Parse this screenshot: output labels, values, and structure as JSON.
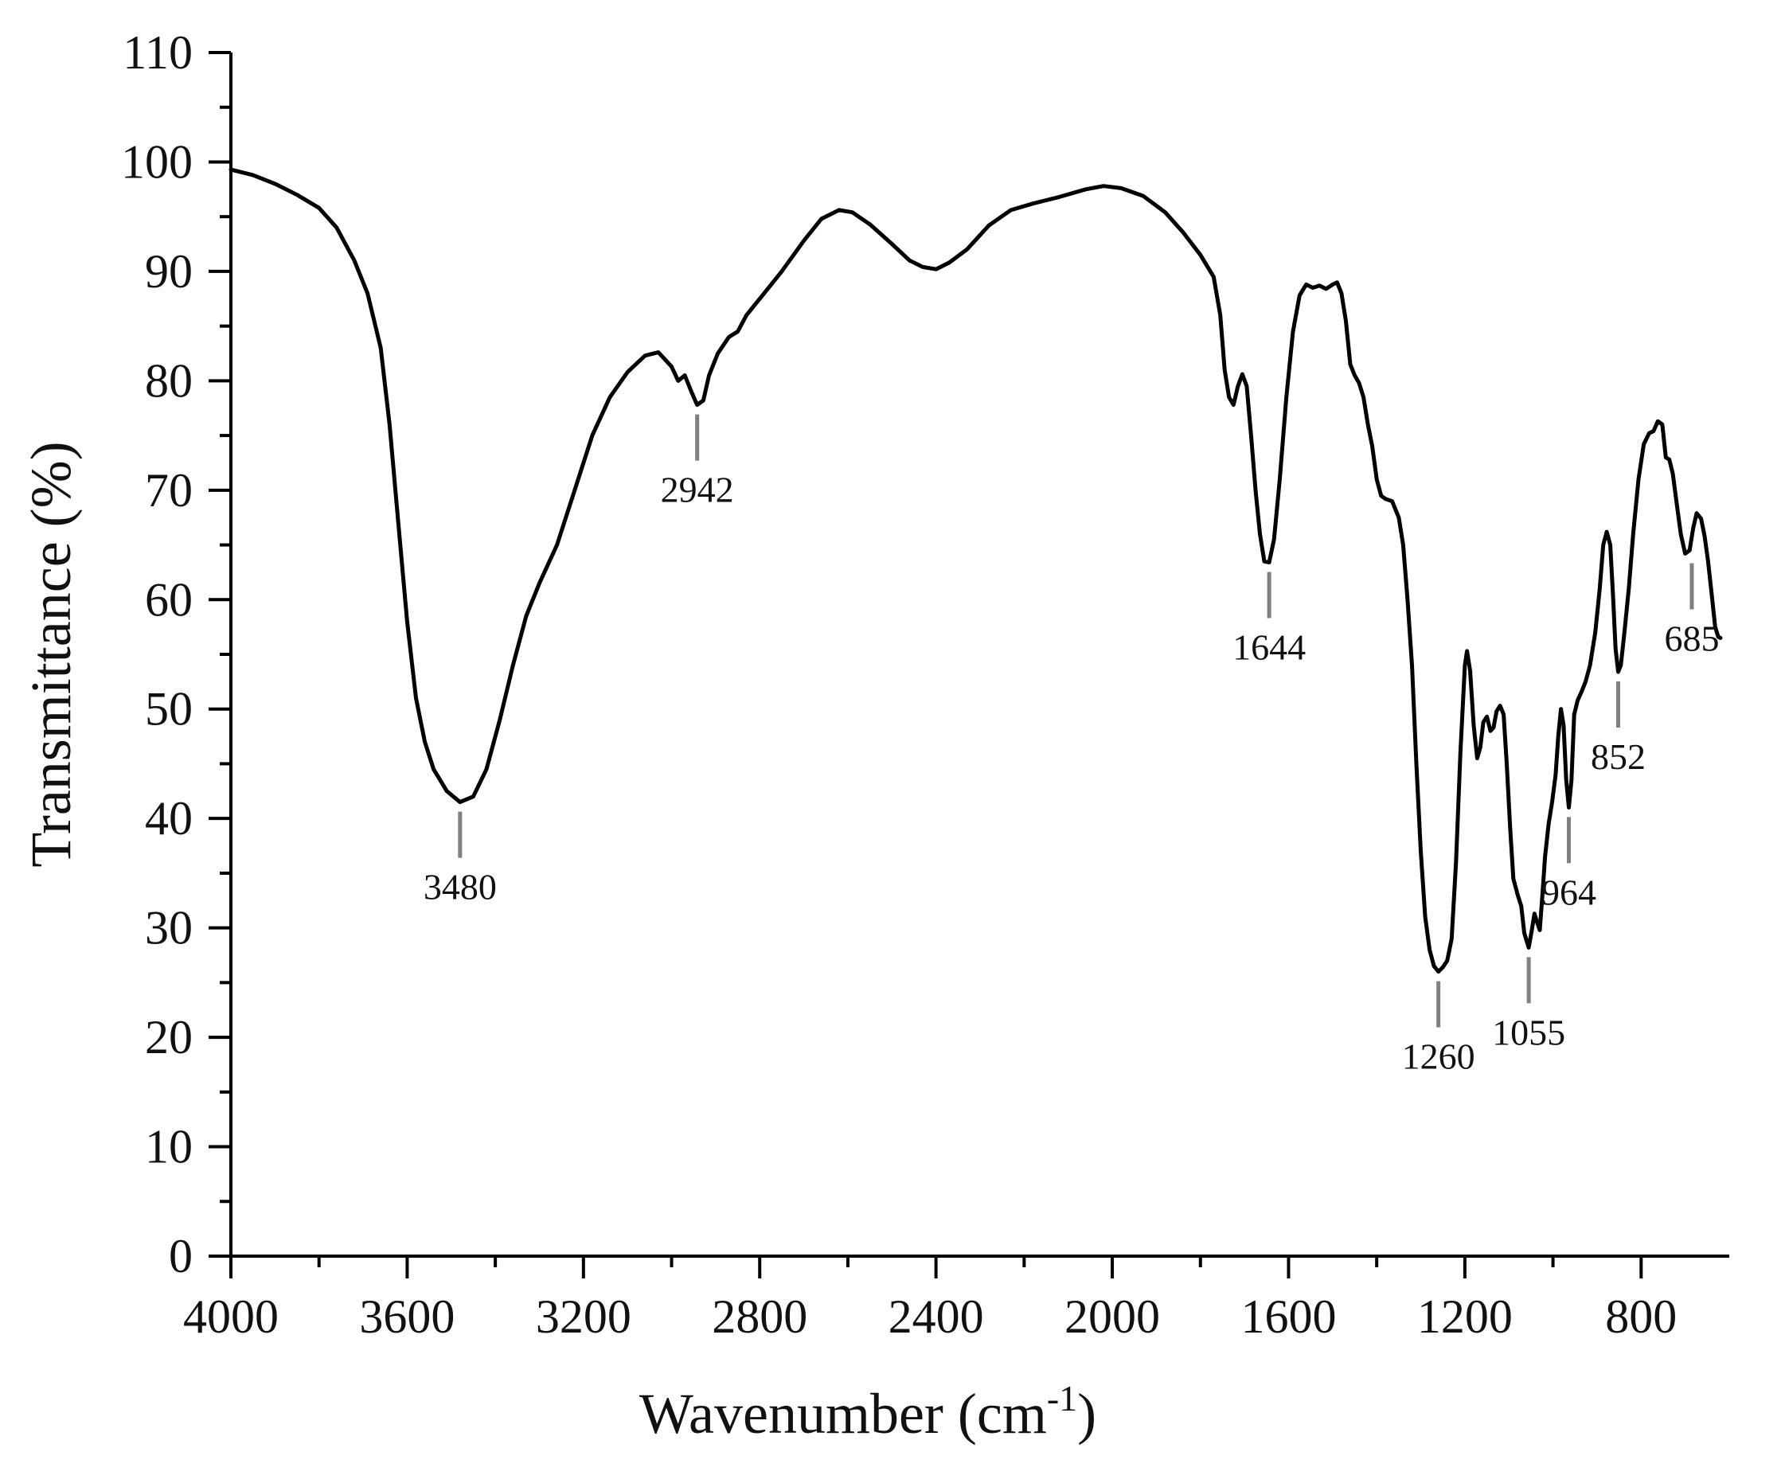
{
  "chart_data": {
    "type": "line",
    "title": "",
    "xlabel": "Wavenumber (cm",
    "xlabel_superscript": "-1",
    "xlabel_suffix": ")",
    "ylabel": "Transmittance (%)",
    "xlim": [
      4000,
      600
    ],
    "x_reversed": true,
    "ylim": [
      0,
      110
    ],
    "grid": false,
    "legend": "none",
    "x_ticks": [
      4000,
      3600,
      3200,
      2800,
      2400,
      2000,
      1600,
      1200,
      800
    ],
    "y_ticks": [
      0,
      10,
      20,
      30,
      40,
      50,
      60,
      70,
      80,
      90,
      100,
      110
    ],
    "x_tick_labels": [
      "4000",
      "3600",
      "3200",
      "2800",
      "2400",
      "2000",
      "1600",
      "1200",
      "800"
    ],
    "y_tick_labels": [
      "0",
      "10",
      "20",
      "30",
      "40",
      "50",
      "60",
      "70",
      "80",
      "90",
      "100",
      "110"
    ],
    "series": [
      {
        "color": "#000000",
        "points": [
          [
            4000,
            99.3
          ],
          [
            3950,
            98.8
          ],
          [
            3900,
            98.0
          ],
          [
            3850,
            97.0
          ],
          [
            3800,
            95.8
          ],
          [
            3760,
            94.0
          ],
          [
            3720,
            91.0
          ],
          [
            3690,
            88.0
          ],
          [
            3660,
            83.0
          ],
          [
            3640,
            76.0
          ],
          [
            3620,
            67.0
          ],
          [
            3600,
            58.0
          ],
          [
            3580,
            51.0
          ],
          [
            3560,
            47.0
          ],
          [
            3540,
            44.5
          ],
          [
            3510,
            42.5
          ],
          [
            3480,
            41.5
          ],
          [
            3450,
            42.0
          ],
          [
            3420,
            44.5
          ],
          [
            3390,
            49.0
          ],
          [
            3360,
            54.0
          ],
          [
            3330,
            58.5
          ],
          [
            3300,
            61.5
          ],
          [
            3260,
            65.0
          ],
          [
            3220,
            70.0
          ],
          [
            3180,
            75.0
          ],
          [
            3140,
            78.5
          ],
          [
            3100,
            80.8
          ],
          [
            3060,
            82.3
          ],
          [
            3030,
            82.6
          ],
          [
            3000,
            81.3
          ],
          [
            2985,
            80.0
          ],
          [
            2970,
            80.5
          ],
          [
            2955,
            79.0
          ],
          [
            2942,
            77.8
          ],
          [
            2928,
            78.2
          ],
          [
            2915,
            80.5
          ],
          [
            2895,
            82.5
          ],
          [
            2870,
            84.0
          ],
          [
            2850,
            84.5
          ],
          [
            2830,
            86.0
          ],
          [
            2790,
            88.0
          ],
          [
            2750,
            90.0
          ],
          [
            2700,
            92.8
          ],
          [
            2660,
            94.8
          ],
          [
            2620,
            95.6
          ],
          [
            2590,
            95.4
          ],
          [
            2550,
            94.3
          ],
          [
            2500,
            92.5
          ],
          [
            2460,
            91.0
          ],
          [
            2430,
            90.4
          ],
          [
            2400,
            90.2
          ],
          [
            2370,
            90.8
          ],
          [
            2330,
            92.0
          ],
          [
            2280,
            94.2
          ],
          [
            2230,
            95.6
          ],
          [
            2180,
            96.2
          ],
          [
            2120,
            96.8
          ],
          [
            2060,
            97.5
          ],
          [
            2020,
            97.8
          ],
          [
            1980,
            97.6
          ],
          [
            1930,
            96.9
          ],
          [
            1880,
            95.4
          ],
          [
            1840,
            93.6
          ],
          [
            1800,
            91.5
          ],
          [
            1770,
            89.5
          ],
          [
            1755,
            86.0
          ],
          [
            1745,
            81.0
          ],
          [
            1735,
            78.5
          ],
          [
            1725,
            77.8
          ],
          [
            1715,
            79.5
          ],
          [
            1705,
            80.6
          ],
          [
            1695,
            79.5
          ],
          [
            1685,
            75.0
          ],
          [
            1675,
            70.0
          ],
          [
            1665,
            66.0
          ],
          [
            1655,
            63.5
          ],
          [
            1644,
            63.4
          ],
          [
            1633,
            65.5
          ],
          [
            1620,
            71.0
          ],
          [
            1605,
            78.5
          ],
          [
            1590,
            84.5
          ],
          [
            1575,
            87.8
          ],
          [
            1560,
            88.8
          ],
          [
            1545,
            88.5
          ],
          [
            1530,
            88.7
          ],
          [
            1515,
            88.4
          ],
          [
            1500,
            88.8
          ],
          [
            1490,
            89.0
          ],
          [
            1480,
            88.0
          ],
          [
            1470,
            85.5
          ],
          [
            1460,
            81.5
          ],
          [
            1450,
            80.5
          ],
          [
            1440,
            79.8
          ],
          [
            1430,
            78.5
          ],
          [
            1420,
            76.0
          ],
          [
            1410,
            74.0
          ],
          [
            1400,
            71.0
          ],
          [
            1390,
            69.5
          ],
          [
            1380,
            69.2
          ],
          [
            1365,
            69.0
          ],
          [
            1350,
            67.5
          ],
          [
            1340,
            65.0
          ],
          [
            1330,
            60.0
          ],
          [
            1320,
            54.0
          ],
          [
            1310,
            45.0
          ],
          [
            1300,
            37.0
          ],
          [
            1290,
            31.0
          ],
          [
            1280,
            28.0
          ],
          [
            1270,
            26.5
          ],
          [
            1260,
            26.0
          ],
          [
            1250,
            26.4
          ],
          [
            1240,
            27.0
          ],
          [
            1230,
            29.0
          ],
          [
            1220,
            36.0
          ],
          [
            1210,
            46.0
          ],
          [
            1200,
            54.0
          ],
          [
            1195,
            55.3
          ],
          [
            1188,
            53.5
          ],
          [
            1180,
            48.5
          ],
          [
            1172,
            45.5
          ],
          [
            1165,
            46.5
          ],
          [
            1158,
            48.8
          ],
          [
            1150,
            49.3
          ],
          [
            1142,
            48.0
          ],
          [
            1135,
            48.3
          ],
          [
            1128,
            49.8
          ],
          [
            1120,
            50.3
          ],
          [
            1112,
            49.5
          ],
          [
            1105,
            45.0
          ],
          [
            1097,
            39.0
          ],
          [
            1090,
            34.5
          ],
          [
            1080,
            33.0
          ],
          [
            1072,
            32.0
          ],
          [
            1065,
            29.5
          ],
          [
            1055,
            28.2
          ],
          [
            1048,
            29.8
          ],
          [
            1042,
            31.3
          ],
          [
            1036,
            30.5
          ],
          [
            1030,
            29.8
          ],
          [
            1024,
            33.0
          ],
          [
            1018,
            36.5
          ],
          [
            1010,
            39.5
          ],
          [
            1002,
            41.5
          ],
          [
            994,
            44.0
          ],
          [
            988,
            47.5
          ],
          [
            982,
            50.0
          ],
          [
            976,
            48.5
          ],
          [
            970,
            43.5
          ],
          [
            964,
            41.0
          ],
          [
            958,
            43.5
          ],
          [
            952,
            49.5
          ],
          [
            944,
            50.8
          ],
          [
            936,
            51.5
          ],
          [
            926,
            52.5
          ],
          [
            916,
            54.0
          ],
          [
            904,
            57.0
          ],
          [
            894,
            61.0
          ],
          [
            886,
            65.0
          ],
          [
            878,
            66.2
          ],
          [
            870,
            65.0
          ],
          [
            864,
            60.5
          ],
          [
            858,
            55.5
          ],
          [
            852,
            53.4
          ],
          [
            846,
            54.0
          ],
          [
            838,
            57.0
          ],
          [
            828,
            61.0
          ],
          [
            818,
            66.0
          ],
          [
            806,
            71.0
          ],
          [
            794,
            74.2
          ],
          [
            782,
            75.2
          ],
          [
            772,
            75.4
          ],
          [
            762,
            76.3
          ],
          [
            752,
            76.0
          ],
          [
            744,
            73.0
          ],
          [
            736,
            72.8
          ],
          [
            728,
            71.5
          ],
          [
            720,
            69.0
          ],
          [
            710,
            66.0
          ],
          [
            700,
            64.2
          ],
          [
            690,
            64.5
          ],
          [
            682,
            66.5
          ],
          [
            674,
            67.9
          ],
          [
            664,
            67.4
          ],
          [
            656,
            65.8
          ],
          [
            648,
            63.5
          ],
          [
            640,
            60.5
          ],
          [
            632,
            57.5
          ],
          [
            625,
            56.6
          ],
          [
            620,
            56.5
          ]
        ]
      }
    ],
    "annotations": [
      {
        "text": "3480",
        "x": 3480,
        "y": 41.5,
        "position": "below"
      },
      {
        "text": "2942",
        "x": 2942,
        "y": 77.8,
        "position": "below"
      },
      {
        "text": "1644",
        "x": 1644,
        "y": 63.4,
        "position": "below"
      },
      {
        "text": "1260",
        "x": 1260,
        "y": 26.0,
        "position": "below"
      },
      {
        "text": "1055",
        "x": 1055,
        "y": 28.2,
        "position": "below"
      },
      {
        "text": "964",
        "x": 964,
        "y": 41.0,
        "position": "below"
      },
      {
        "text": "852",
        "x": 852,
        "y": 53.4,
        "position": "below"
      },
      {
        "text": "685",
        "x": 685,
        "y": 64.2,
        "position": "below"
      }
    ],
    "colors": {
      "line": "#000000",
      "peak_marker": "#808080"
    }
  }
}
